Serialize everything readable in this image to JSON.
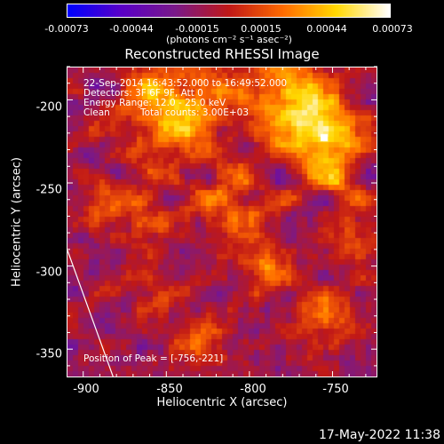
{
  "colorbar": {
    "ticks": [
      "-0.00073",
      "-0.00044",
      "-0.00015",
      "0.00015",
      "0.00044",
      "0.00073"
    ],
    "unit": "(photons cm⁻² s⁻¹ asec⁻²)"
  },
  "chart_data": {
    "type": "heatmap",
    "title": "Reconstructed RHESSI Image",
    "xlabel": "Heliocentric X (arcsec)",
    "ylabel": "Heliocentric Y (arcsec)",
    "xlim": [
      -910,
      -723
    ],
    "ylim": [
      -367,
      -180
    ],
    "xticks": [
      "-900",
      "-850",
      "-800",
      "-750"
    ],
    "yticks": [
      "-200",
      "-250",
      "-300",
      "-350"
    ],
    "color_range": [
      -0.00073,
      0.00073
    ],
    "colormap": [
      "#0000ff",
      "#5a00c8",
      "#7a1a8a",
      "#c01818",
      "#ff6a00",
      "#ffd800",
      "#ffffff"
    ],
    "annotations": {
      "line1": "22-Sep-2014 16:43:52.000 to 16:49:52.000",
      "line2": "Detectors: 3F 6F 9F, Att 0",
      "line3": "Energy Range: 12.0 - 25.0 keV",
      "line4a": "Clean",
      "line4b": "Total counts: 3.00E+03"
    },
    "peak_label": "Position of Peak = [-756,-221]",
    "peak": [
      -756,
      -221
    ],
    "limb_line": true
  },
  "footer": {
    "date": "17-May-2022 11:38"
  }
}
